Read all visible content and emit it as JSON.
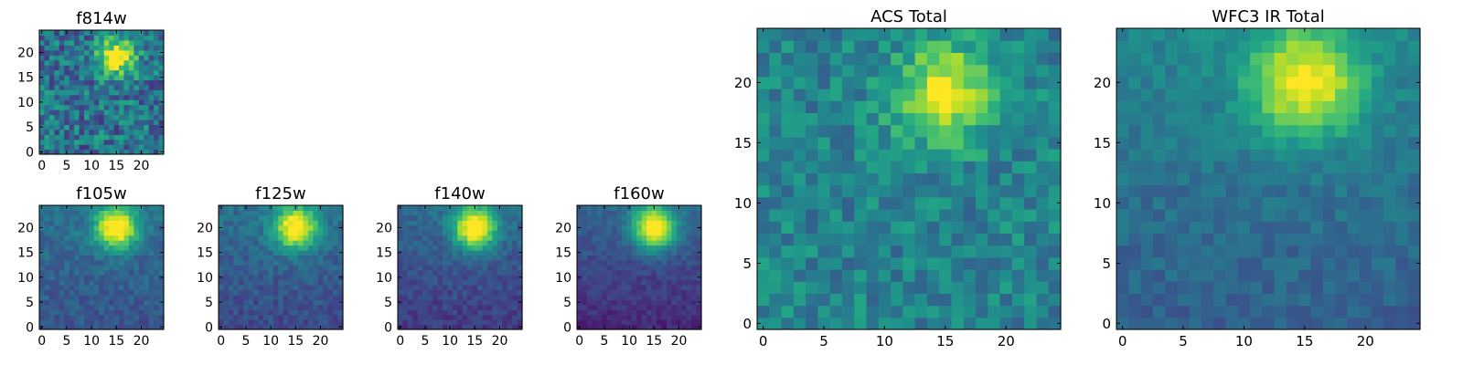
{
  "chart_data": [
    {
      "type": "heatmap",
      "title": "f814w",
      "xlim": [
        -0.5,
        24.5
      ],
      "ylim": [
        -0.5,
        24.5
      ],
      "xticks": [
        0,
        5,
        10,
        15,
        20
      ],
      "yticks": [
        0,
        5,
        10,
        15,
        20
      ],
      "colormap": "viridis",
      "grid_size": [
        25,
        25
      ],
      "source": {
        "cx": 15,
        "cy": 19,
        "sigma": 2.6,
        "amp": 0.7
      },
      "background": 0.38,
      "noise": 0.22,
      "gradient": 0.0,
      "seed": 3
    },
    {
      "type": "heatmap",
      "title": "f105w",
      "xlim": [
        -0.5,
        24.5
      ],
      "ylim": [
        -0.5,
        24.5
      ],
      "xticks": [
        0,
        5,
        10,
        15,
        20
      ],
      "yticks": [
        0,
        5,
        10,
        15,
        20
      ],
      "colormap": "viridis",
      "grid_size": [
        25,
        25
      ],
      "source": {
        "cx": 15,
        "cy": 20,
        "sigma": 3.0,
        "amp": 0.75
      },
      "background": 0.32,
      "noise": 0.08,
      "gradient": 0.12,
      "seed": 11
    },
    {
      "type": "heatmap",
      "title": "f125w",
      "xlim": [
        -0.5,
        24.5
      ],
      "ylim": [
        -0.5,
        24.5
      ],
      "xticks": [
        0,
        5,
        10,
        15,
        20
      ],
      "yticks": [
        0,
        5,
        10,
        15,
        20
      ],
      "colormap": "viridis",
      "grid_size": [
        25,
        25
      ],
      "source": {
        "cx": 15,
        "cy": 20,
        "sigma": 3.0,
        "amp": 0.75
      },
      "background": 0.3,
      "noise": 0.08,
      "gradient": 0.15,
      "seed": 17
    },
    {
      "type": "heatmap",
      "title": "f140w",
      "xlim": [
        -0.5,
        24.5
      ],
      "ylim": [
        -0.5,
        24.5
      ],
      "xticks": [
        0,
        5,
        10,
        15,
        20
      ],
      "yticks": [
        0,
        5,
        10,
        15,
        20
      ],
      "colormap": "viridis",
      "grid_size": [
        25,
        25
      ],
      "source": {
        "cx": 15,
        "cy": 20,
        "sigma": 3.0,
        "amp": 0.8
      },
      "background": 0.26,
      "noise": 0.07,
      "gradient": 0.18,
      "seed": 23
    },
    {
      "type": "heatmap",
      "title": "f160w",
      "xlim": [
        -0.5,
        24.5
      ],
      "ylim": [
        -0.5,
        24.5
      ],
      "xticks": [
        0,
        5,
        10,
        15,
        20
      ],
      "yticks": [
        0,
        5,
        10,
        15,
        20
      ],
      "colormap": "viridis",
      "grid_size": [
        25,
        25
      ],
      "source": {
        "cx": 15,
        "cy": 20,
        "sigma": 3.0,
        "amp": 0.8
      },
      "background": 0.22,
      "noise": 0.06,
      "gradient": 0.22,
      "seed": 29
    },
    {
      "type": "heatmap",
      "title": "ACS Total",
      "xlim": [
        -0.5,
        24.5
      ],
      "ylim": [
        -0.5,
        24.5
      ],
      "xticks": [
        0,
        5,
        10,
        15,
        20
      ],
      "yticks": [
        0,
        5,
        10,
        15,
        20
      ],
      "colormap": "viridis",
      "grid_size": [
        25,
        25
      ],
      "source": {
        "cx": 15,
        "cy": 19,
        "sigma": 2.8,
        "amp": 0.55
      },
      "background": 0.45,
      "noise": 0.14,
      "gradient": 0.0,
      "seed": 5
    },
    {
      "type": "heatmap",
      "title": "WFC3 IR Total",
      "xlim": [
        -0.5,
        24.5
      ],
      "ylim": [
        -0.5,
        24.5
      ],
      "xticks": [
        0,
        5,
        10,
        15,
        20
      ],
      "yticks": [
        0,
        5,
        10,
        15,
        20
      ],
      "colormap": "viridis",
      "grid_size": [
        25,
        25
      ],
      "source": {
        "cx": 15,
        "cy": 20,
        "sigma": 3.2,
        "amp": 0.6
      },
      "background": 0.38,
      "noise": 0.07,
      "gradient": 0.15,
      "seed": 41
    }
  ]
}
